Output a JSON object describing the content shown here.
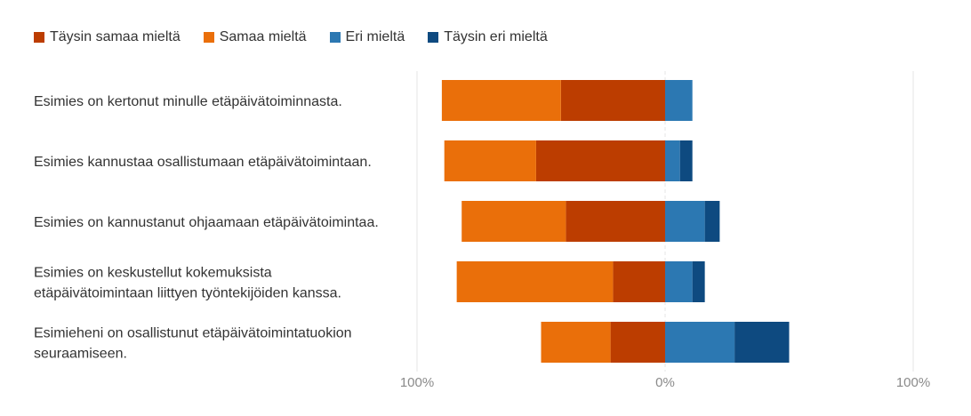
{
  "chart_data": {
    "type": "bar",
    "orientation": "horizontal-diverging",
    "series": [
      {
        "name": "Täysin samaa mieltä",
        "color": "#bc3d00",
        "values": [
          -42,
          -52,
          -40,
          -21,
          -22
        ]
      },
      {
        "name": "Samaa mieltä",
        "color": "#ea6f0a",
        "values": [
          -48,
          -37,
          -42,
          -63,
          -28
        ]
      },
      {
        "name": "Eri mieltä",
        "color": "#2c78b2",
        "values": [
          11,
          6,
          16,
          11,
          28
        ]
      },
      {
        "name": "Täysin eri mieltä",
        "color": "#0e4a80",
        "values": [
          0,
          5,
          6,
          5,
          22
        ]
      }
    ],
    "categories": [
      [
        "Esimies on kertonut minulle etäpäivätoiminnasta."
      ],
      [
        "Esimies kannustaa osallistumaan etäpäivätoimintaan."
      ],
      [
        "Esimies on kannustanut ohjaamaan etäpäivätoimintaa."
      ],
      [
        "Esimies on keskustellut kokemuksista",
        "etäpäivätoimintaan liittyen työntekijöiden kanssa."
      ],
      [
        "Esimieheni on osallistunut etäpäivätoimintatuokion",
        "seuraamiseen."
      ]
    ],
    "xlim": [
      -100,
      100
    ],
    "ticks": [
      {
        "value": -100,
        "label": "100%"
      },
      {
        "value": 0,
        "label": "0%"
      },
      {
        "value": 100,
        "label": "100%"
      }
    ],
    "grid": true,
    "legend_position": "top-left"
  }
}
